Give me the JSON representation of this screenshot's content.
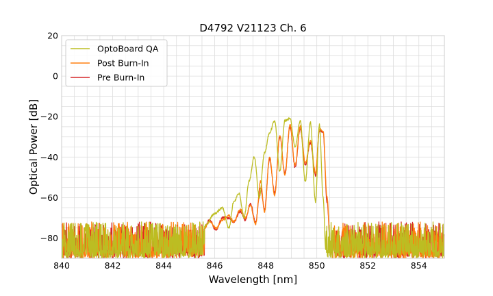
{
  "chart_data": {
    "type": "line",
    "title": "D4792 V21123 Ch. 6",
    "xlabel": "Wavelength [nm]",
    "ylabel": "Optical Power [dB]",
    "xlim": [
      840,
      855
    ],
    "ylim": [
      -90,
      20
    ],
    "xticks": [
      840,
      842,
      844,
      846,
      848,
      850,
      852,
      854
    ],
    "yticks": [
      20,
      0,
      -20,
      -40,
      -60,
      -80
    ],
    "grid": true,
    "legend_position": "top-left",
    "noise_floor_range": [
      -90,
      -72
    ],
    "series": [
      {
        "name": "OptoBoard QA",
        "color": "#bcbd22",
        "x": [
          845.6,
          846.0,
          846.3,
          846.55,
          846.75,
          846.95,
          847.15,
          847.35,
          847.55,
          847.75,
          847.95,
          848.15,
          848.35,
          848.55,
          848.75,
          848.95,
          849.15,
          849.35,
          849.55,
          849.75,
          849.95,
          850.1,
          850.25,
          850.35
        ],
        "y": [
          -74,
          -68,
          -65,
          -75,
          -62,
          -58,
          -70,
          -52,
          -40,
          -60,
          -38,
          -28,
          -22,
          -47,
          -22,
          -21,
          -35,
          -22,
          -52,
          -23,
          -62,
          -24,
          -60,
          -86
        ]
      },
      {
        "name": "Post Burn-In",
        "color": "#ff7f0e",
        "x": [
          845.6,
          845.8,
          846.05,
          846.3,
          846.55,
          846.75,
          847.0,
          847.2,
          847.4,
          847.6,
          847.8,
          847.95,
          848.15,
          848.35,
          848.55,
          848.75,
          848.95,
          849.15,
          849.35,
          849.55,
          849.75,
          849.95,
          850.1,
          850.25,
          850.4,
          850.55
        ],
        "y": [
          -75,
          -72,
          -75,
          -71,
          -69,
          -72,
          -66,
          -70,
          -64,
          -73,
          -52,
          -67,
          -40,
          -59,
          -29,
          -49,
          -24,
          -44,
          -25,
          -43,
          -32,
          -48,
          -26,
          -27,
          -60,
          -88
        ]
      },
      {
        "name": "Pre Burn-In",
        "color": "#d62728",
        "x": [
          845.6,
          845.8,
          846.05,
          846.3,
          846.55,
          846.75,
          847.0,
          847.2,
          847.4,
          847.6,
          847.8,
          847.95,
          848.15,
          848.35,
          848.55,
          848.75,
          848.95,
          849.15,
          849.35,
          849.55,
          849.75,
          849.95,
          850.1,
          850.25,
          850.4,
          850.55
        ],
        "y": [
          -75,
          -71,
          -76,
          -70,
          -70,
          -72,
          -67,
          -71,
          -63,
          -72,
          -55,
          -66,
          -41,
          -58,
          -30,
          -48,
          -25,
          -45,
          -26,
          -44,
          -33,
          -49,
          -27,
          -28,
          -62,
          -88
        ]
      }
    ]
  }
}
